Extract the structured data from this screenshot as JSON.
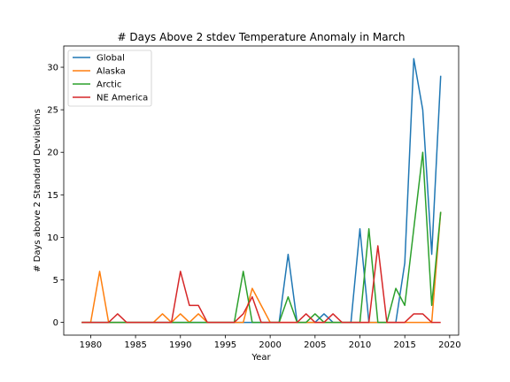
{
  "chart_data": {
    "type": "line",
    "title": "# Days Above 2 stdev Temperature Anomaly in March",
    "xlabel": "Year",
    "ylabel": "# Days above 2 Standard Deviations",
    "xlim": [
      1977,
      2021
    ],
    "ylim": [
      -1.5,
      32.5
    ],
    "xticks": [
      1980,
      1985,
      1990,
      1995,
      2000,
      2005,
      2010,
      2015,
      2020
    ],
    "yticks": [
      0,
      5,
      10,
      15,
      20,
      25,
      30
    ],
    "grid": false,
    "legend_position": "top-left",
    "x": [
      1979,
      1980,
      1981,
      1982,
      1983,
      1984,
      1985,
      1986,
      1987,
      1988,
      1989,
      1990,
      1991,
      1992,
      1993,
      1994,
      1995,
      1996,
      1997,
      1998,
      1999,
      2000,
      2001,
      2002,
      2003,
      2004,
      2005,
      2006,
      2007,
      2008,
      2009,
      2010,
      2011,
      2012,
      2013,
      2014,
      2015,
      2016,
      2017,
      2018,
      2019
    ],
    "series": [
      {
        "name": "Global",
        "color": "#1f77b4",
        "values": [
          0,
          0,
          0,
          0,
          0,
          0,
          0,
          0,
          0,
          0,
          0,
          0,
          0,
          0,
          0,
          0,
          0,
          0,
          0,
          0,
          0,
          0,
          0,
          8,
          0,
          0,
          0,
          1,
          0,
          0,
          0,
          11,
          0,
          0,
          0,
          0,
          7,
          31,
          25,
          8,
          29
        ]
      },
      {
        "name": "Alaska",
        "color": "#ff7f0e",
        "values": [
          0,
          0,
          6,
          0,
          0,
          0,
          0,
          0,
          0,
          1,
          0,
          1,
          0,
          1,
          0,
          0,
          0,
          0,
          0,
          4,
          2,
          0,
          0,
          0,
          0,
          0,
          0,
          0,
          0,
          0,
          0,
          0,
          0,
          0,
          0,
          0,
          0,
          0,
          0,
          0,
          13
        ]
      },
      {
        "name": "Arctic",
        "color": "#2ca02c",
        "values": [
          0,
          0,
          0,
          0,
          0,
          0,
          0,
          0,
          0,
          0,
          0,
          0,
          0,
          0,
          0,
          0,
          0,
          0,
          6,
          0,
          0,
          0,
          0,
          3,
          0,
          0,
          1,
          0,
          0,
          0,
          0,
          0,
          11,
          0,
          0,
          4,
          2,
          11,
          20,
          2,
          13
        ]
      },
      {
        "name": "NE America",
        "color": "#d62728",
        "values": [
          0,
          0,
          0,
          0,
          1,
          0,
          0,
          0,
          0,
          0,
          0,
          6,
          2,
          2,
          0,
          0,
          0,
          0,
          1,
          3,
          0,
          0,
          0,
          0,
          0,
          1,
          0,
          0,
          1,
          0,
          0,
          0,
          0,
          9,
          0,
          0,
          0,
          1,
          1,
          0,
          0
        ]
      }
    ]
  }
}
